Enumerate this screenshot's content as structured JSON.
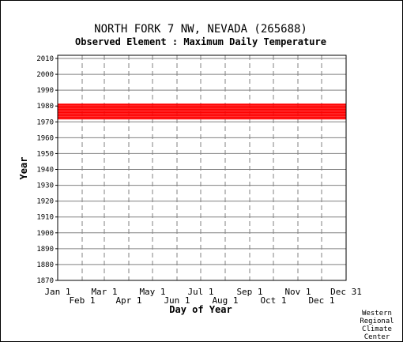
{
  "chart_data": {
    "type": "heatmap",
    "title": "NORTH FORK 7 NW, NEVADA   (265688)",
    "subtitle": "Observed Element : Maximum Daily Temperature",
    "xlabel": "Day of Year",
    "ylabel": "Year",
    "ylim": [
      1870,
      2012
    ],
    "xlim": [
      1,
      366
    ],
    "y_ticks": [
      1870,
      1880,
      1890,
      1900,
      1910,
      1920,
      1930,
      1940,
      1950,
      1960,
      1970,
      1980,
      1990,
      2000,
      2010
    ],
    "x_ticks_upper": [
      {
        "label": "Jan 1",
        "day": 1
      },
      {
        "label": "Mar 1",
        "day": 60
      },
      {
        "label": "May 1",
        "day": 121
      },
      {
        "label": "Jul 1",
        "day": 182
      },
      {
        "label": "Sep 1",
        "day": 244
      },
      {
        "label": "Nov 1",
        "day": 305
      },
      {
        "label": "Dec 31",
        "day": 366
      }
    ],
    "x_ticks_lower": [
      {
        "label": "Feb 1",
        "day": 32
      },
      {
        "label": "Apr 1",
        "day": 91
      },
      {
        "label": "Jun 1",
        "day": 152
      },
      {
        "label": "Aug 1",
        "day": 213
      },
      {
        "label": "Oct 1",
        "day": 274
      },
      {
        "label": "Dec 1",
        "day": 335
      }
    ],
    "grid": true,
    "data_color": "#ff0000",
    "year_coverage": [
      {
        "year": 1972,
        "from": 1,
        "to": 366
      },
      {
        "year": 1973,
        "from": 1,
        "to": 366
      },
      {
        "year": 1974,
        "from": 1,
        "to": 366
      },
      {
        "year": 1975,
        "from": 1,
        "to": 366
      },
      {
        "year": 1976,
        "from": 1,
        "to": 366
      },
      {
        "year": 1977,
        "from": 1,
        "to": 366
      },
      {
        "year": 1978,
        "from": 1,
        "to": 366
      },
      {
        "year": 1979,
        "from": 1,
        "to": 366
      },
      {
        "year": 1980,
        "from": 1,
        "to": 366
      },
      {
        "year": 1981,
        "from": 1,
        "to": 366
      }
    ]
  },
  "credit": [
    "Western",
    "Regional",
    "Climate",
    "Center"
  ]
}
